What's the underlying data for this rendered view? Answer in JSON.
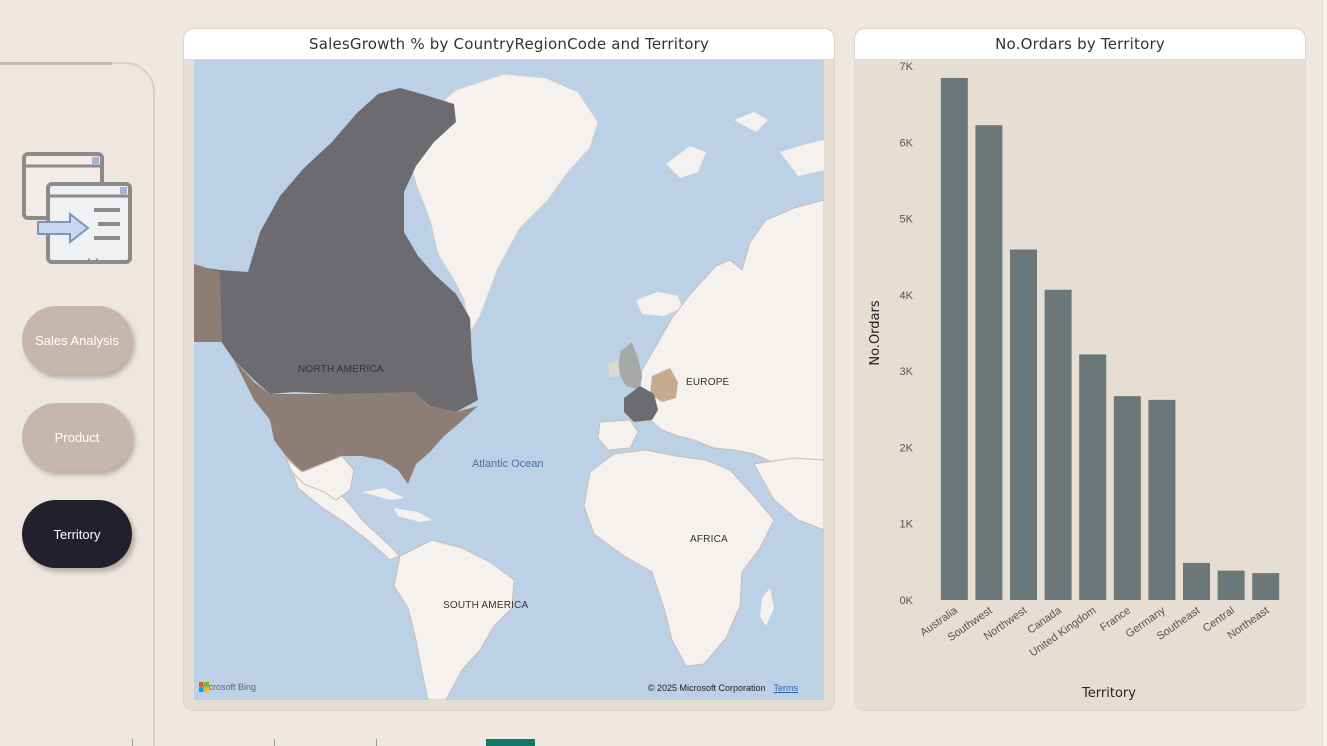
{
  "nav": {
    "buttons": [
      {
        "label": "Sales Analysis",
        "active": false
      },
      {
        "label": "Product",
        "active": false
      },
      {
        "label": "Territory",
        "active": true
      }
    ]
  },
  "map_visual": {
    "title": "SalesGrowth % by CountryRegionCode and Territory",
    "labels": {
      "north_america": "NORTH AMERICA",
      "europe": "EUROPE",
      "atlantic": "Atlantic Ocean",
      "africa": "AFRICA",
      "south_america": "SOUTH AMERICA"
    },
    "bing_logo": "Microsoft Bing",
    "copyright": "© 2025 Microsoft Corporation",
    "terms": "Terms"
  },
  "chart_data": {
    "type": "bar",
    "title": "No.Ordars by Territory",
    "xlabel": "Territory",
    "ylabel": "No.Ordars",
    "categories": [
      "Australia",
      "Southwest",
      "Northwest",
      "Canada",
      "United Kingdom",
      "France",
      "Germany",
      "Southeast",
      "Central",
      "Northeast"
    ],
    "values": [
      6843,
      6224,
      4594,
      4067,
      3219,
      2672,
      2623,
      486,
      385,
      352
    ],
    "ylim": [
      0,
      7000
    ],
    "yticks": [
      0,
      1000,
      2000,
      3000,
      4000,
      5000,
      6000,
      7000
    ],
    "ytick_labels": [
      "0K",
      "1K",
      "2K",
      "3K",
      "4K",
      "5K",
      "6K",
      "7K"
    ],
    "bar_color": "#6b7779",
    "grid": false
  },
  "colors": {
    "background": "#efe8e1",
    "card": "#e6ddd3",
    "nav_inactive": "#c7b6ab",
    "nav_active": "#21202c",
    "map_dark": "#6b6b70",
    "map_mid": "#8e7d75",
    "map_light": "#c7ab91",
    "tab_active": "#117865"
  }
}
